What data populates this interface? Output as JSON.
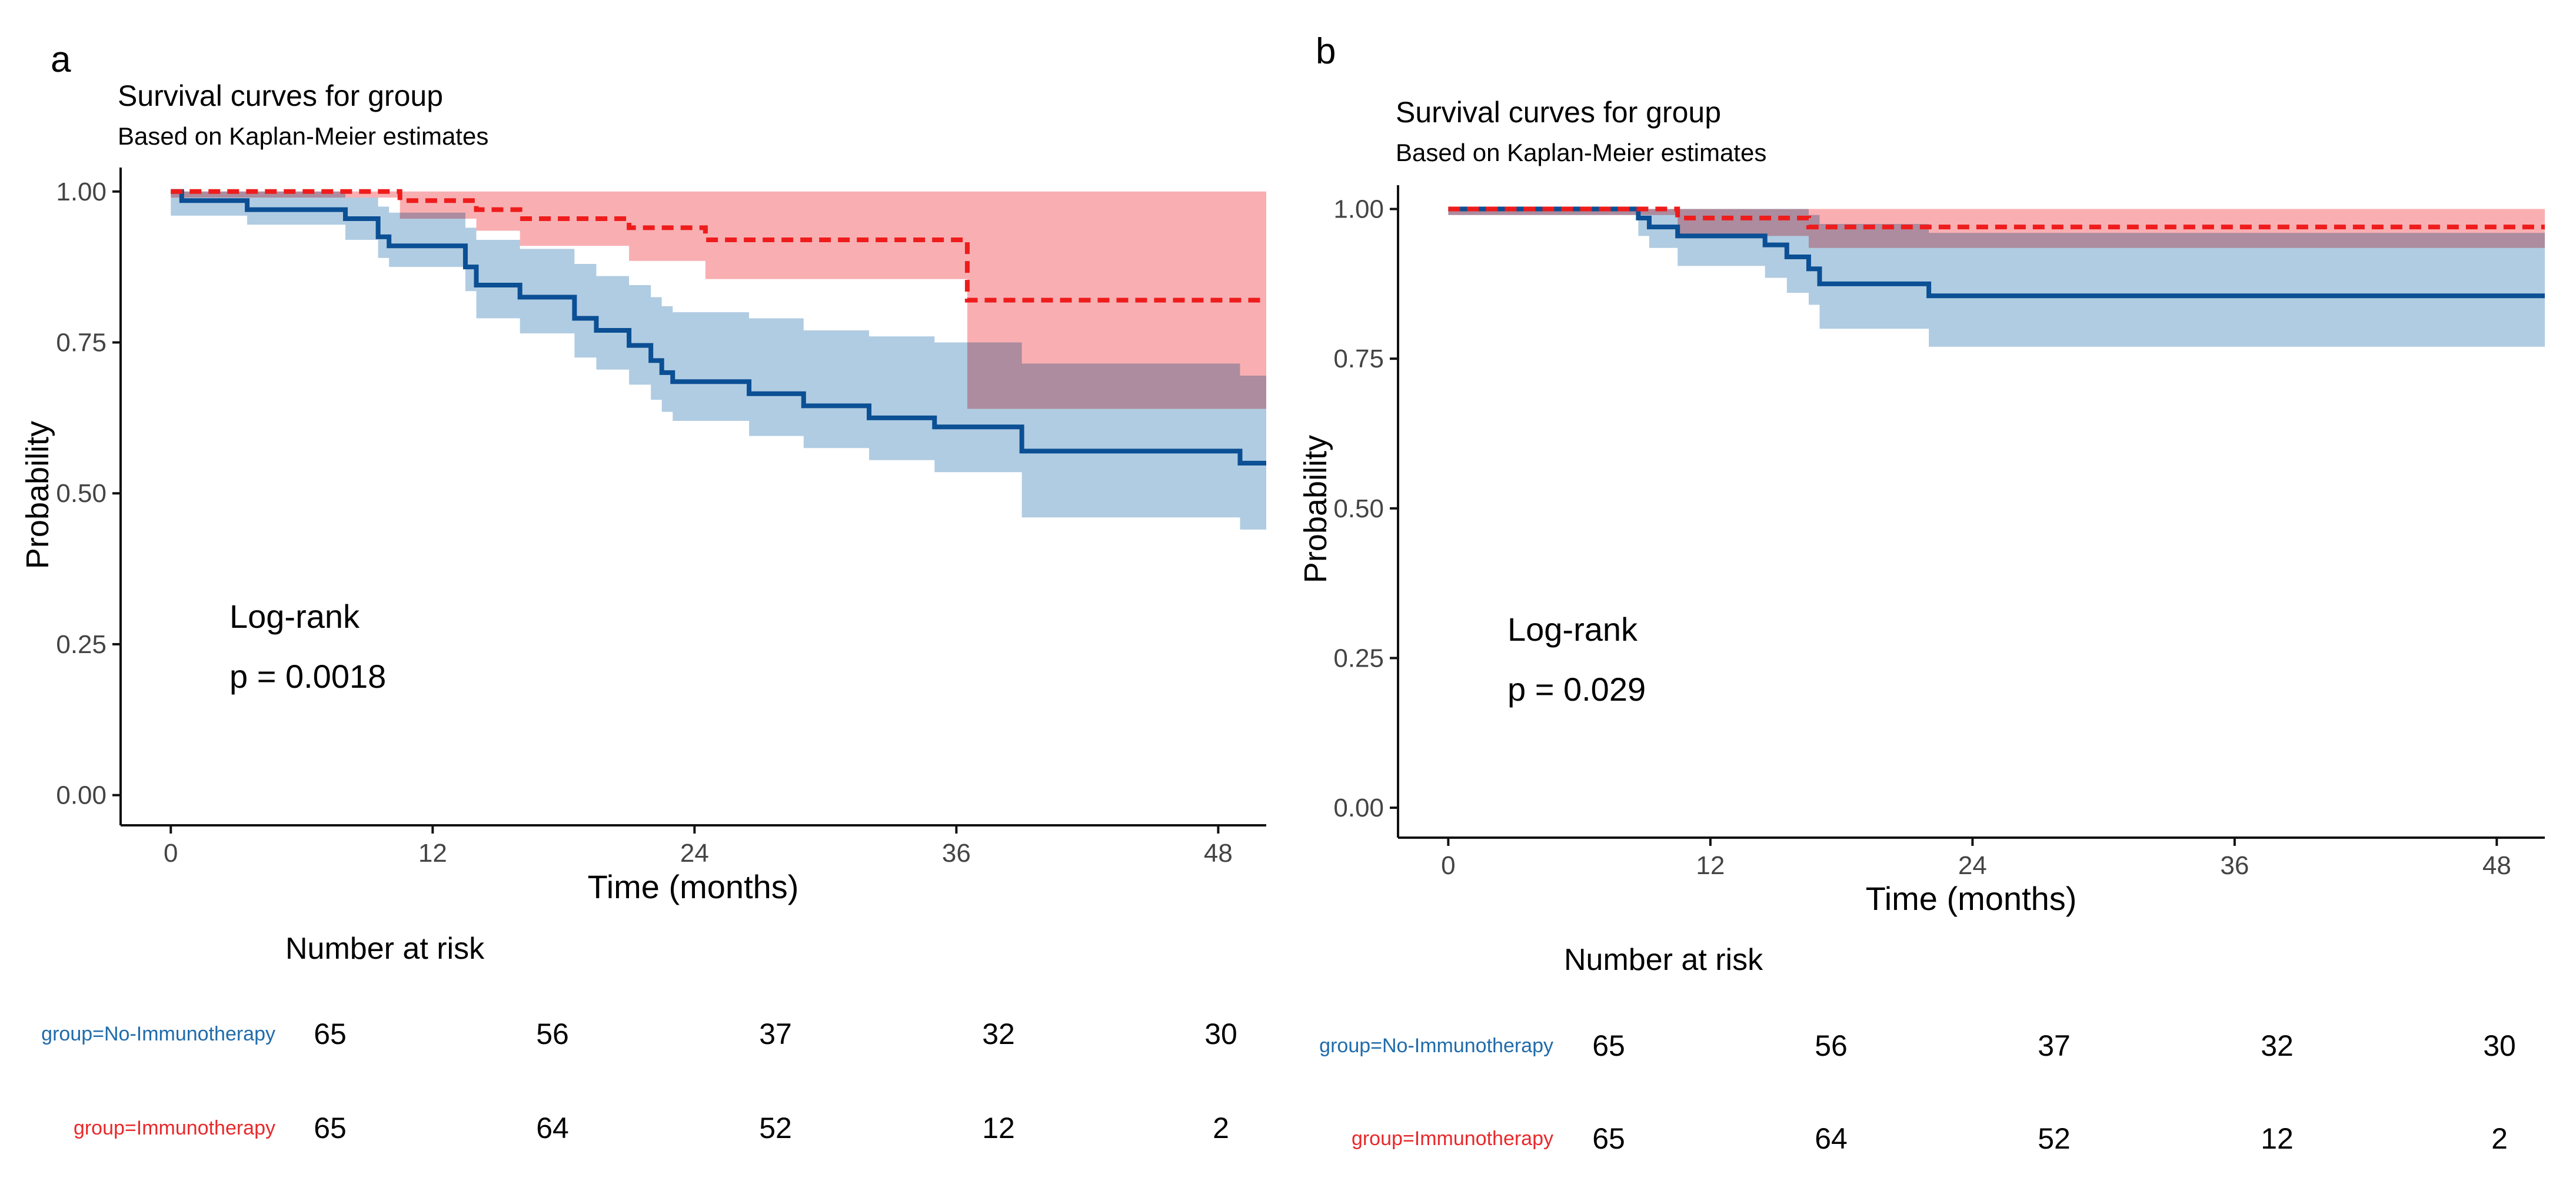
{
  "panels": [
    {
      "label": "a",
      "title": "Survival curves for group",
      "subtitle": "Based on Kaplan-Meier estimates",
      "xlabel": "Time (months)",
      "ylabel": "Probability",
      "annotation_line1": "Log-rank",
      "annotation_line2": "p = 0.0018",
      "risk_title": "Number at risk",
      "risk_rows": [
        {
          "label": "group=No-Immunotherapy",
          "color": "#1f6bab",
          "counts": [
            "65",
            "56",
            "37",
            "32",
            "30"
          ]
        },
        {
          "label": "group=Immunotherapy",
          "color": "#e8282a",
          "counts": [
            "65",
            "64",
            "52",
            "12",
            "2"
          ]
        }
      ]
    },
    {
      "label": "b",
      "title": "Survival curves for group",
      "subtitle": "Based on Kaplan-Meier estimates",
      "xlabel": "Time (months)",
      "ylabel": "Probability",
      "annotation_line1": "Log-rank",
      "annotation_line2": "p = 0.029",
      "risk_title": "Number at risk",
      "risk_rows": [
        {
          "label": "group=No-Immunotherapy",
          "color": "#1f6bab",
          "counts": [
            "65",
            "56",
            "37",
            "32",
            "30"
          ]
        },
        {
          "label": "group=Immunotherapy",
          "color": "#e8282a",
          "counts": [
            "65",
            "64",
            "52",
            "12",
            "2"
          ]
        }
      ]
    }
  ],
  "chart_data": [
    {
      "type": "line",
      "subtype": "kaplan-meier step",
      "title": "Survival curves for group",
      "subtitle": "Based on Kaplan-Meier estimates",
      "xlabel": "Time (months)",
      "ylabel": "Probability",
      "xlim": [
        -2.3,
        50.2
      ],
      "ylim": [
        -0.05,
        1.03
      ],
      "xticks": [
        0,
        12,
        24,
        36,
        48
      ],
      "yticks": [
        "0.00",
        "0.25",
        "0.50",
        "0.75",
        "1.00"
      ],
      "series": [
        {
          "name": "No-Immunotherapy",
          "color": "#0b4f94",
          "band_color": "#a9c8e0",
          "dashed": false,
          "steps": [
            [
              0,
              1.0
            ],
            [
              0.5,
              0.985
            ],
            [
              3.5,
              0.97
            ],
            [
              8,
              0.955
            ],
            [
              9.5,
              0.925
            ],
            [
              10,
              0.91
            ],
            [
              13.5,
              0.875
            ],
            [
              14,
              0.845
            ],
            [
              16,
              0.825
            ],
            [
              18.5,
              0.79
            ],
            [
              19.5,
              0.77
            ],
            [
              21,
              0.745
            ],
            [
              22,
              0.72
            ],
            [
              22.5,
              0.7
            ],
            [
              23,
              0.685
            ],
            [
              26.5,
              0.665
            ],
            [
              29,
              0.645
            ],
            [
              32,
              0.625
            ],
            [
              35,
              0.61
            ],
            [
              39,
              0.57
            ],
            [
              49,
              0.55
            ],
            [
              50.2,
              0.55
            ]
          ],
          "lower": [
            [
              0,
              0.96
            ],
            [
              3.5,
              0.945
            ],
            [
              8,
              0.92
            ],
            [
              9.5,
              0.89
            ],
            [
              10,
              0.875
            ],
            [
              13.5,
              0.835
            ],
            [
              14,
              0.79
            ],
            [
              16,
              0.765
            ],
            [
              18.5,
              0.725
            ],
            [
              19.5,
              0.705
            ],
            [
              21,
              0.68
            ],
            [
              22,
              0.655
            ],
            [
              22.5,
              0.635
            ],
            [
              23,
              0.62
            ],
            [
              26.5,
              0.595
            ],
            [
              29,
              0.575
            ],
            [
              32,
              0.555
            ],
            [
              35,
              0.535
            ],
            [
              39,
              0.46
            ],
            [
              49,
              0.44
            ],
            [
              50.2,
              0.44
            ]
          ],
          "upper": [
            [
              0,
              1.0
            ],
            [
              8,
              0.99
            ],
            [
              9.5,
              0.975
            ],
            [
              10,
              0.965
            ],
            [
              13.5,
              0.94
            ],
            [
              14,
              0.92
            ],
            [
              16,
              0.905
            ],
            [
              18.5,
              0.88
            ],
            [
              19.5,
              0.86
            ],
            [
              21,
              0.845
            ],
            [
              22,
              0.825
            ],
            [
              22.5,
              0.81
            ],
            [
              23,
              0.8
            ],
            [
              26.5,
              0.79
            ],
            [
              29,
              0.77
            ],
            [
              32,
              0.76
            ],
            [
              35,
              0.75
            ],
            [
              39,
              0.715
            ],
            [
              49,
              0.695
            ],
            [
              50.2,
              0.695
            ]
          ]
        },
        {
          "name": "Immunotherapy",
          "color": "#ee1c1c",
          "band_color": "#f8a8ab",
          "dashed": true,
          "steps": [
            [
              0,
              1.0
            ],
            [
              10.5,
              0.985
            ],
            [
              14,
              0.97
            ],
            [
              16,
              0.955
            ],
            [
              21,
              0.94
            ],
            [
              24.5,
              0.92
            ],
            [
              36.5,
              0.82
            ],
            [
              50.2,
              0.82
            ]
          ],
          "lower": [
            [
              0,
              0.99
            ],
            [
              10.5,
              0.955
            ],
            [
              14,
              0.935
            ],
            [
              16,
              0.91
            ],
            [
              21,
              0.885
            ],
            [
              24.5,
              0.855
            ],
            [
              36.5,
              0.64
            ],
            [
              50.2,
              0.64
            ]
          ],
          "upper": [
            [
              0,
              1.0
            ],
            [
              50.2,
              1.0
            ]
          ]
        }
      ],
      "annotations": [
        "Log-rank",
        "p = 0.0018"
      ]
    },
    {
      "type": "line",
      "subtype": "kaplan-meier step",
      "title": "Survival curves for group",
      "subtitle": "Based on Kaplan-Meier estimates",
      "xlabel": "Time (months)",
      "ylabel": "Probability",
      "xlim": [
        -2.3,
        50.2
      ],
      "ylim": [
        -0.05,
        1.03
      ],
      "xticks": [
        0,
        12,
        24,
        36,
        48
      ],
      "yticks": [
        "0.00",
        "0.25",
        "0.50",
        "0.75",
        "1.00"
      ],
      "series": [
        {
          "name": "No-Immunotherapy",
          "color": "#0b4f94",
          "band_color": "#a9c8e0",
          "dashed": false,
          "steps": [
            [
              0,
              1.0
            ],
            [
              8.7,
              0.985
            ],
            [
              9.2,
              0.97
            ],
            [
              10.5,
              0.955
            ],
            [
              14.5,
              0.94
            ],
            [
              15.5,
              0.92
            ],
            [
              16.5,
              0.9
            ],
            [
              17,
              0.875
            ],
            [
              22,
              0.855
            ],
            [
              50.2,
              0.855
            ]
          ],
          "lower": [
            [
              0,
              0.99
            ],
            [
              8.7,
              0.955
            ],
            [
              9.2,
              0.935
            ],
            [
              10.5,
              0.905
            ],
            [
              14.5,
              0.885
            ],
            [
              15.5,
              0.86
            ],
            [
              16.5,
              0.84
            ],
            [
              17,
              0.8
            ],
            [
              22,
              0.77
            ],
            [
              50.2,
              0.77
            ]
          ],
          "upper": [
            [
              0,
              1.0
            ],
            [
              16.5,
              0.99
            ],
            [
              17,
              0.975
            ],
            [
              22,
              0.96
            ],
            [
              50.2,
              0.96
            ]
          ]
        },
        {
          "name": "Immunotherapy",
          "color": "#ee1c1c",
          "band_color": "#f8a8ab",
          "dashed": true,
          "steps": [
            [
              0,
              1.0
            ],
            [
              10.5,
              0.985
            ],
            [
              16.5,
              0.97
            ],
            [
              50.2,
              0.97
            ]
          ],
          "lower": [
            [
              0,
              0.99
            ],
            [
              10.5,
              0.955
            ],
            [
              16.5,
              0.935
            ],
            [
              50.2,
              0.935
            ]
          ],
          "upper": [
            [
              0,
              1.0
            ],
            [
              50.2,
              1.0
            ]
          ]
        }
      ],
      "annotations": [
        "Log-rank",
        "p = 0.029"
      ]
    }
  ]
}
